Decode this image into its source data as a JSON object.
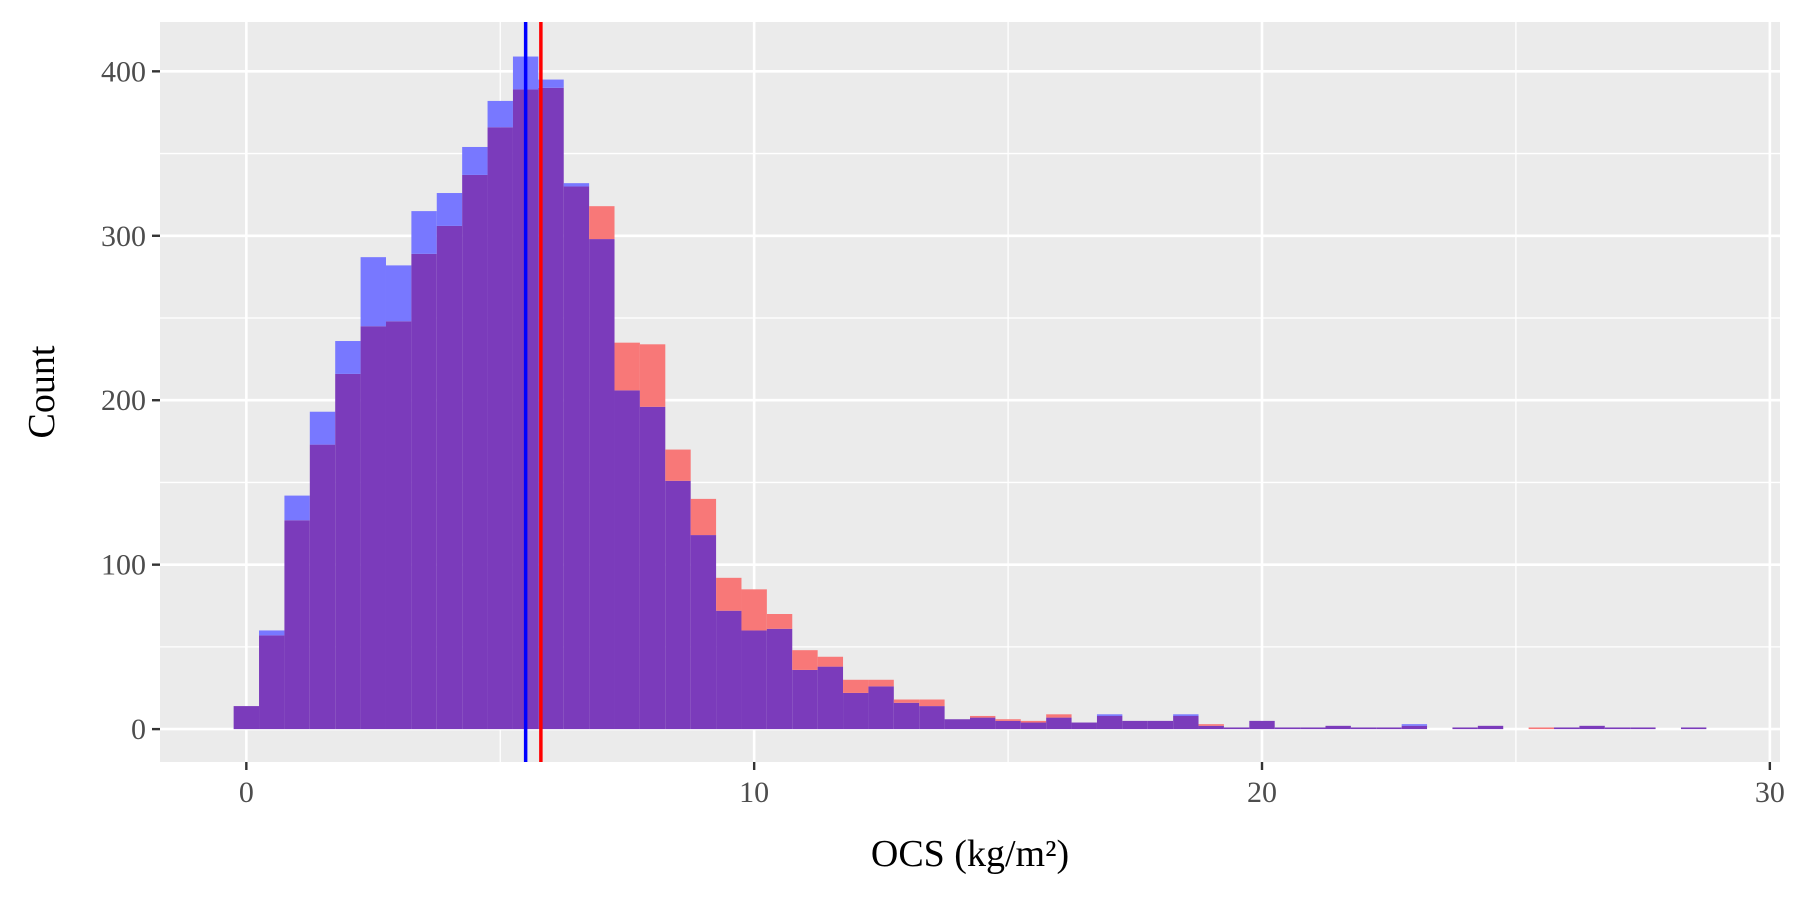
{
  "chart_data": {
    "type": "histogram",
    "title": "",
    "xlabel": "OCS (kg/m²)",
    "ylabel": "Count",
    "xlim": [
      -1.7,
      30.2
    ],
    "ylim": [
      -20,
      430
    ],
    "xticks": [
      0,
      10,
      20,
      30
    ],
    "yticks": [
      0,
      100,
      200,
      300,
      400
    ],
    "grid": true,
    "legend": "none",
    "bin_start": -0.25,
    "bin_width": 0.5,
    "overlap_color": "#7b3bbb",
    "series": [
      {
        "color": "#f87878",
        "mean_line": 5.8,
        "mean_line_color": "#ff0000",
        "values": [
          14,
          57,
          127,
          173,
          216,
          245,
          248,
          289,
          306,
          337,
          366,
          389,
          390,
          330,
          318,
          235,
          234,
          170,
          140,
          92,
          85,
          70,
          48,
          44,
          30,
          30,
          18,
          18,
          6,
          8,
          6,
          5,
          9,
          4,
          8,
          5,
          5,
          8,
          3,
          1,
          5,
          1,
          1,
          2,
          1,
          1,
          2,
          0,
          1,
          2,
          0,
          1,
          1,
          2,
          1,
          1,
          0,
          1,
          0
        ]
      },
      {
        "color": "#7878ff",
        "mean_line": 5.5,
        "mean_line_color": "#0000ff",
        "values": [
          14,
          60,
          142,
          193,
          236,
          287,
          282,
          315,
          326,
          354,
          382,
          409,
          395,
          332,
          298,
          206,
          196,
          151,
          118,
          72,
          60,
          61,
          36,
          38,
          22,
          26,
          16,
          14,
          6,
          7,
          5,
          4,
          7,
          4,
          9,
          5,
          5,
          9,
          2,
          1,
          5,
          1,
          1,
          2,
          1,
          1,
          3,
          0,
          1,
          2,
          0,
          0,
          1,
          2,
          1,
          1,
          0,
          1,
          0
        ]
      }
    ]
  }
}
